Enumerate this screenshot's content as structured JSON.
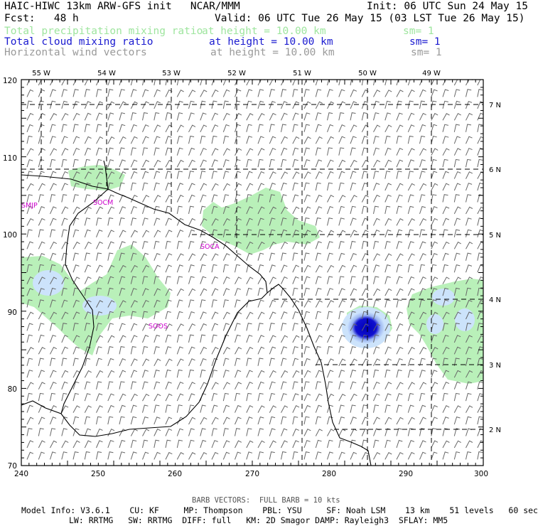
{
  "header": {
    "model_title": "HAIC-HIWC 13km ARW-GFS init   NCAR/MMM",
    "init": "Init: 06 UTC Sun 24 May 15",
    "fcst": "Fcst:   48 h",
    "valid": "Valid: 06 UTC Tue 26 May 15 (03 LST Tue 26 May 15)"
  },
  "fields": [
    {
      "name": "Total precipitation mixing ratio",
      "height": "at height = 10.00 km",
      "sm": "sm= 1",
      "color": "#9ee59e"
    },
    {
      "name": "Total cloud mixing ratio",
      "height": "at height = 10.00 km",
      "sm": "sm= 1",
      "color": "#1a1ad0"
    },
    {
      "name": "Horizontal wind vectors",
      "height": "at height = 10.00 km",
      "sm": "sm= 1",
      "color": "#9a9a9a"
    }
  ],
  "map": {
    "lon_labels": [
      "55 W",
      "54 W",
      "53 W",
      "52 W",
      "51 W",
      "50 W",
      "49 W"
    ],
    "lat_labels": [
      "7 N",
      "6 N",
      "5 N",
      "4 N",
      "3 N",
      "2 N"
    ],
    "y_ticks": [
      "120",
      "110",
      "100",
      "90",
      "80",
      "70"
    ],
    "x_ticks": [
      "240",
      "250",
      "260",
      "270",
      "280",
      "290",
      "300"
    ],
    "stations": [
      "SMJP",
      "SOCM",
      "SOCA",
      "SOOS"
    ],
    "station_color": "#cc00cc",
    "cloud_blob_color": "#1010c8",
    "precip_color": "#b9f0b9"
  },
  "footer": {
    "barb_note": "BARB VECTORS:  FULL BARB = 10 kts",
    "info1": "Model Info: V3.6.1    CU: KF     MP: Thompson    PBL: YSU     SF: Noah LSM    13 km    51 levels   60 sec",
    "info2": "LW: RRTMG   SW: RRTMG  DIFF: full   KM: 2D Smagor DAMP: Rayleigh3  SFLAY: MM5"
  }
}
